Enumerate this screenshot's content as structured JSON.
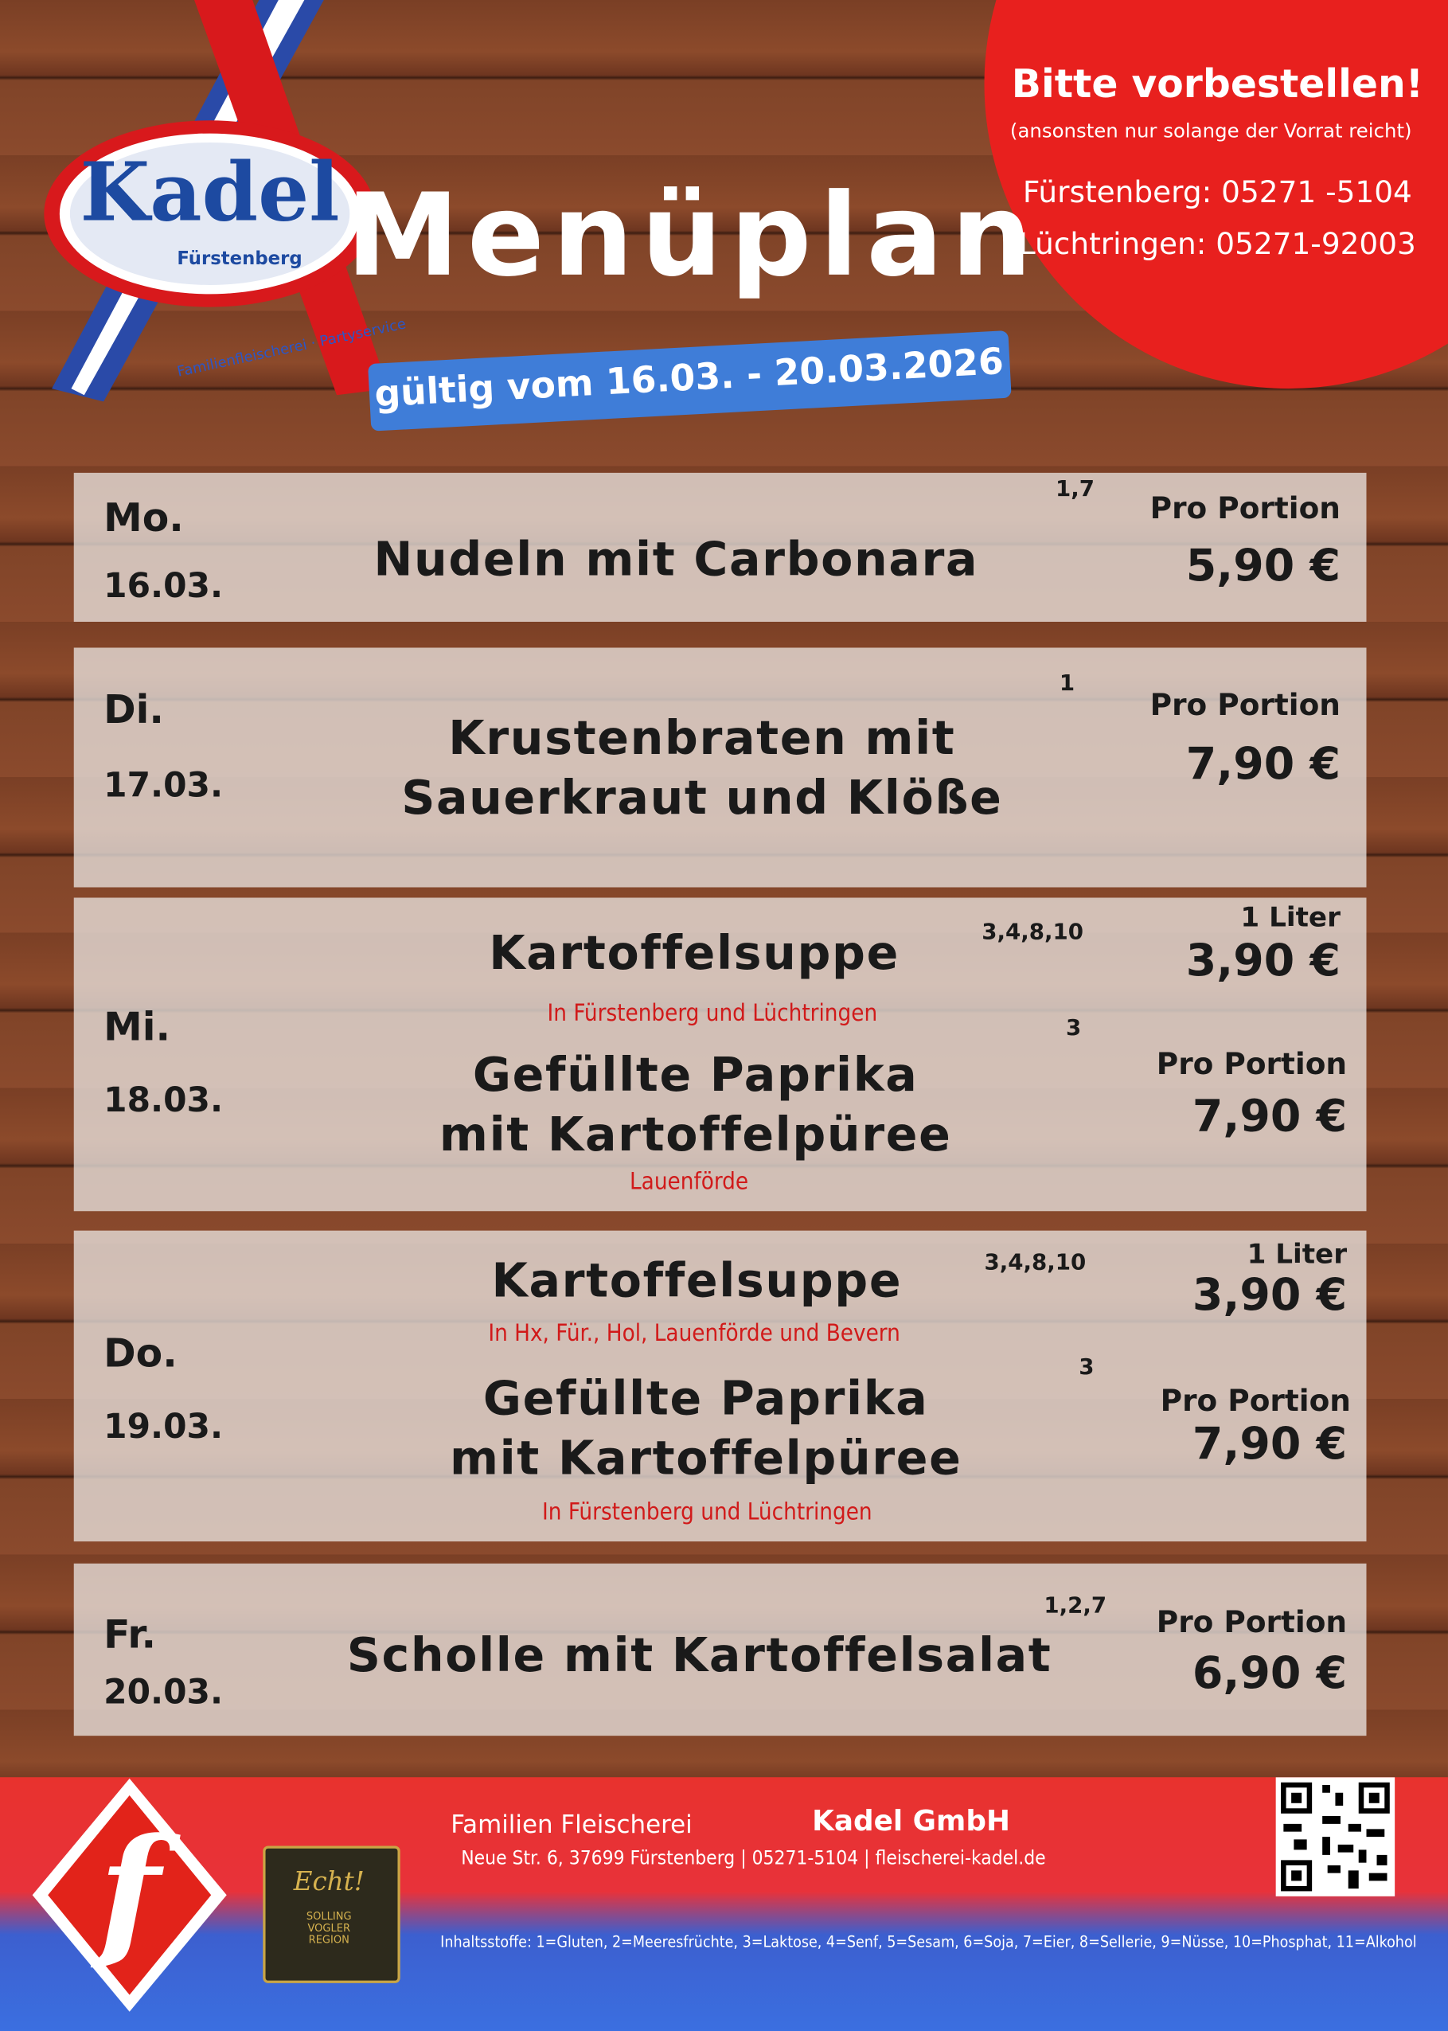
{
  "header": {
    "logo": {
      "name": "Kadel",
      "place": "Fürstenberg",
      "tagline": "Familienfleischerei · Partyservice"
    },
    "title": "Menüplan",
    "validity": "gültig vom 16.03. - 20.03.2026"
  },
  "order": {
    "title": "Bitte vorbestellen!",
    "note": "(ansonsten nur solange der Vorrat reicht)",
    "phones": [
      "Fürstenberg: 05271 -5104",
      "Lüchtringen: 05271-92003"
    ]
  },
  "days": [
    {
      "day": "Mo.",
      "date": "16.03.",
      "items": [
        {
          "name": "Nudeln mit Carbonara",
          "allergens": "1,7",
          "unit": "Pro Portion",
          "price": "5,90 €"
        }
      ]
    },
    {
      "day": "Di.",
      "date": "17.03.",
      "items": [
        {
          "name": "Krustenbraten mit\nSauerkraut und Klöße",
          "allergens": "1",
          "unit": "Pro Portion",
          "price": "7,90 €"
        }
      ]
    },
    {
      "day": "Mi.",
      "date": "18.03.",
      "items": [
        {
          "name": "Kartoffelsuppe",
          "allergens": "3,4,8,10",
          "location": "In Fürstenberg und Lüchtringen",
          "unit": "1 Liter",
          "price": "3,90 €"
        },
        {
          "name": "Gefüllte Paprika\nmit Kartoffelpüree",
          "allergens": "3",
          "location": "Lauenförde",
          "unit": "Pro Portion",
          "price": "7,90 €"
        }
      ]
    },
    {
      "day": "Do.",
      "date": "19.03.",
      "items": [
        {
          "name": "Kartoffelsuppe",
          "allergens": "3,4,8,10",
          "location": "In Hx, Für., Hol, Lauenförde und Bevern",
          "unit": "1 Liter",
          "price": "3,90 €"
        },
        {
          "name": "Gefüllte Paprika\nmit Kartoffelpüree",
          "allergens": "3",
          "location": "In Fürstenberg und Lüchtringen",
          "unit": "Pro Portion",
          "price": "7,90 €"
        }
      ]
    },
    {
      "day": "Fr.",
      "date": "20.03.",
      "items": [
        {
          "name": "Scholle mit Kartoffelsalat",
          "allergens": "1,2,7",
          "unit": "Pro Portion",
          "price": "6,90 €"
        }
      ]
    }
  ],
  "footer": {
    "company": "Familien Fleischerei",
    "brand": "Kadel GmbH",
    "address": "Neue Str. 6, 37699 Fürstenberg | 05271-5104 | fleischerei-kadel.de",
    "allergen_key": "Inhaltsstoffe: 1=Gluten, 2=Meeresfrüchte, 3=Laktose, 4=Senf, 5=Sesam, 6=Soja, 7=Eier, 8=Sellerie, 9=Nüsse, 10=Phosphat, 11=Alkohol",
    "badge": {
      "title": "Echt!",
      "region": "SOLLING VOGLER REGION"
    }
  }
}
